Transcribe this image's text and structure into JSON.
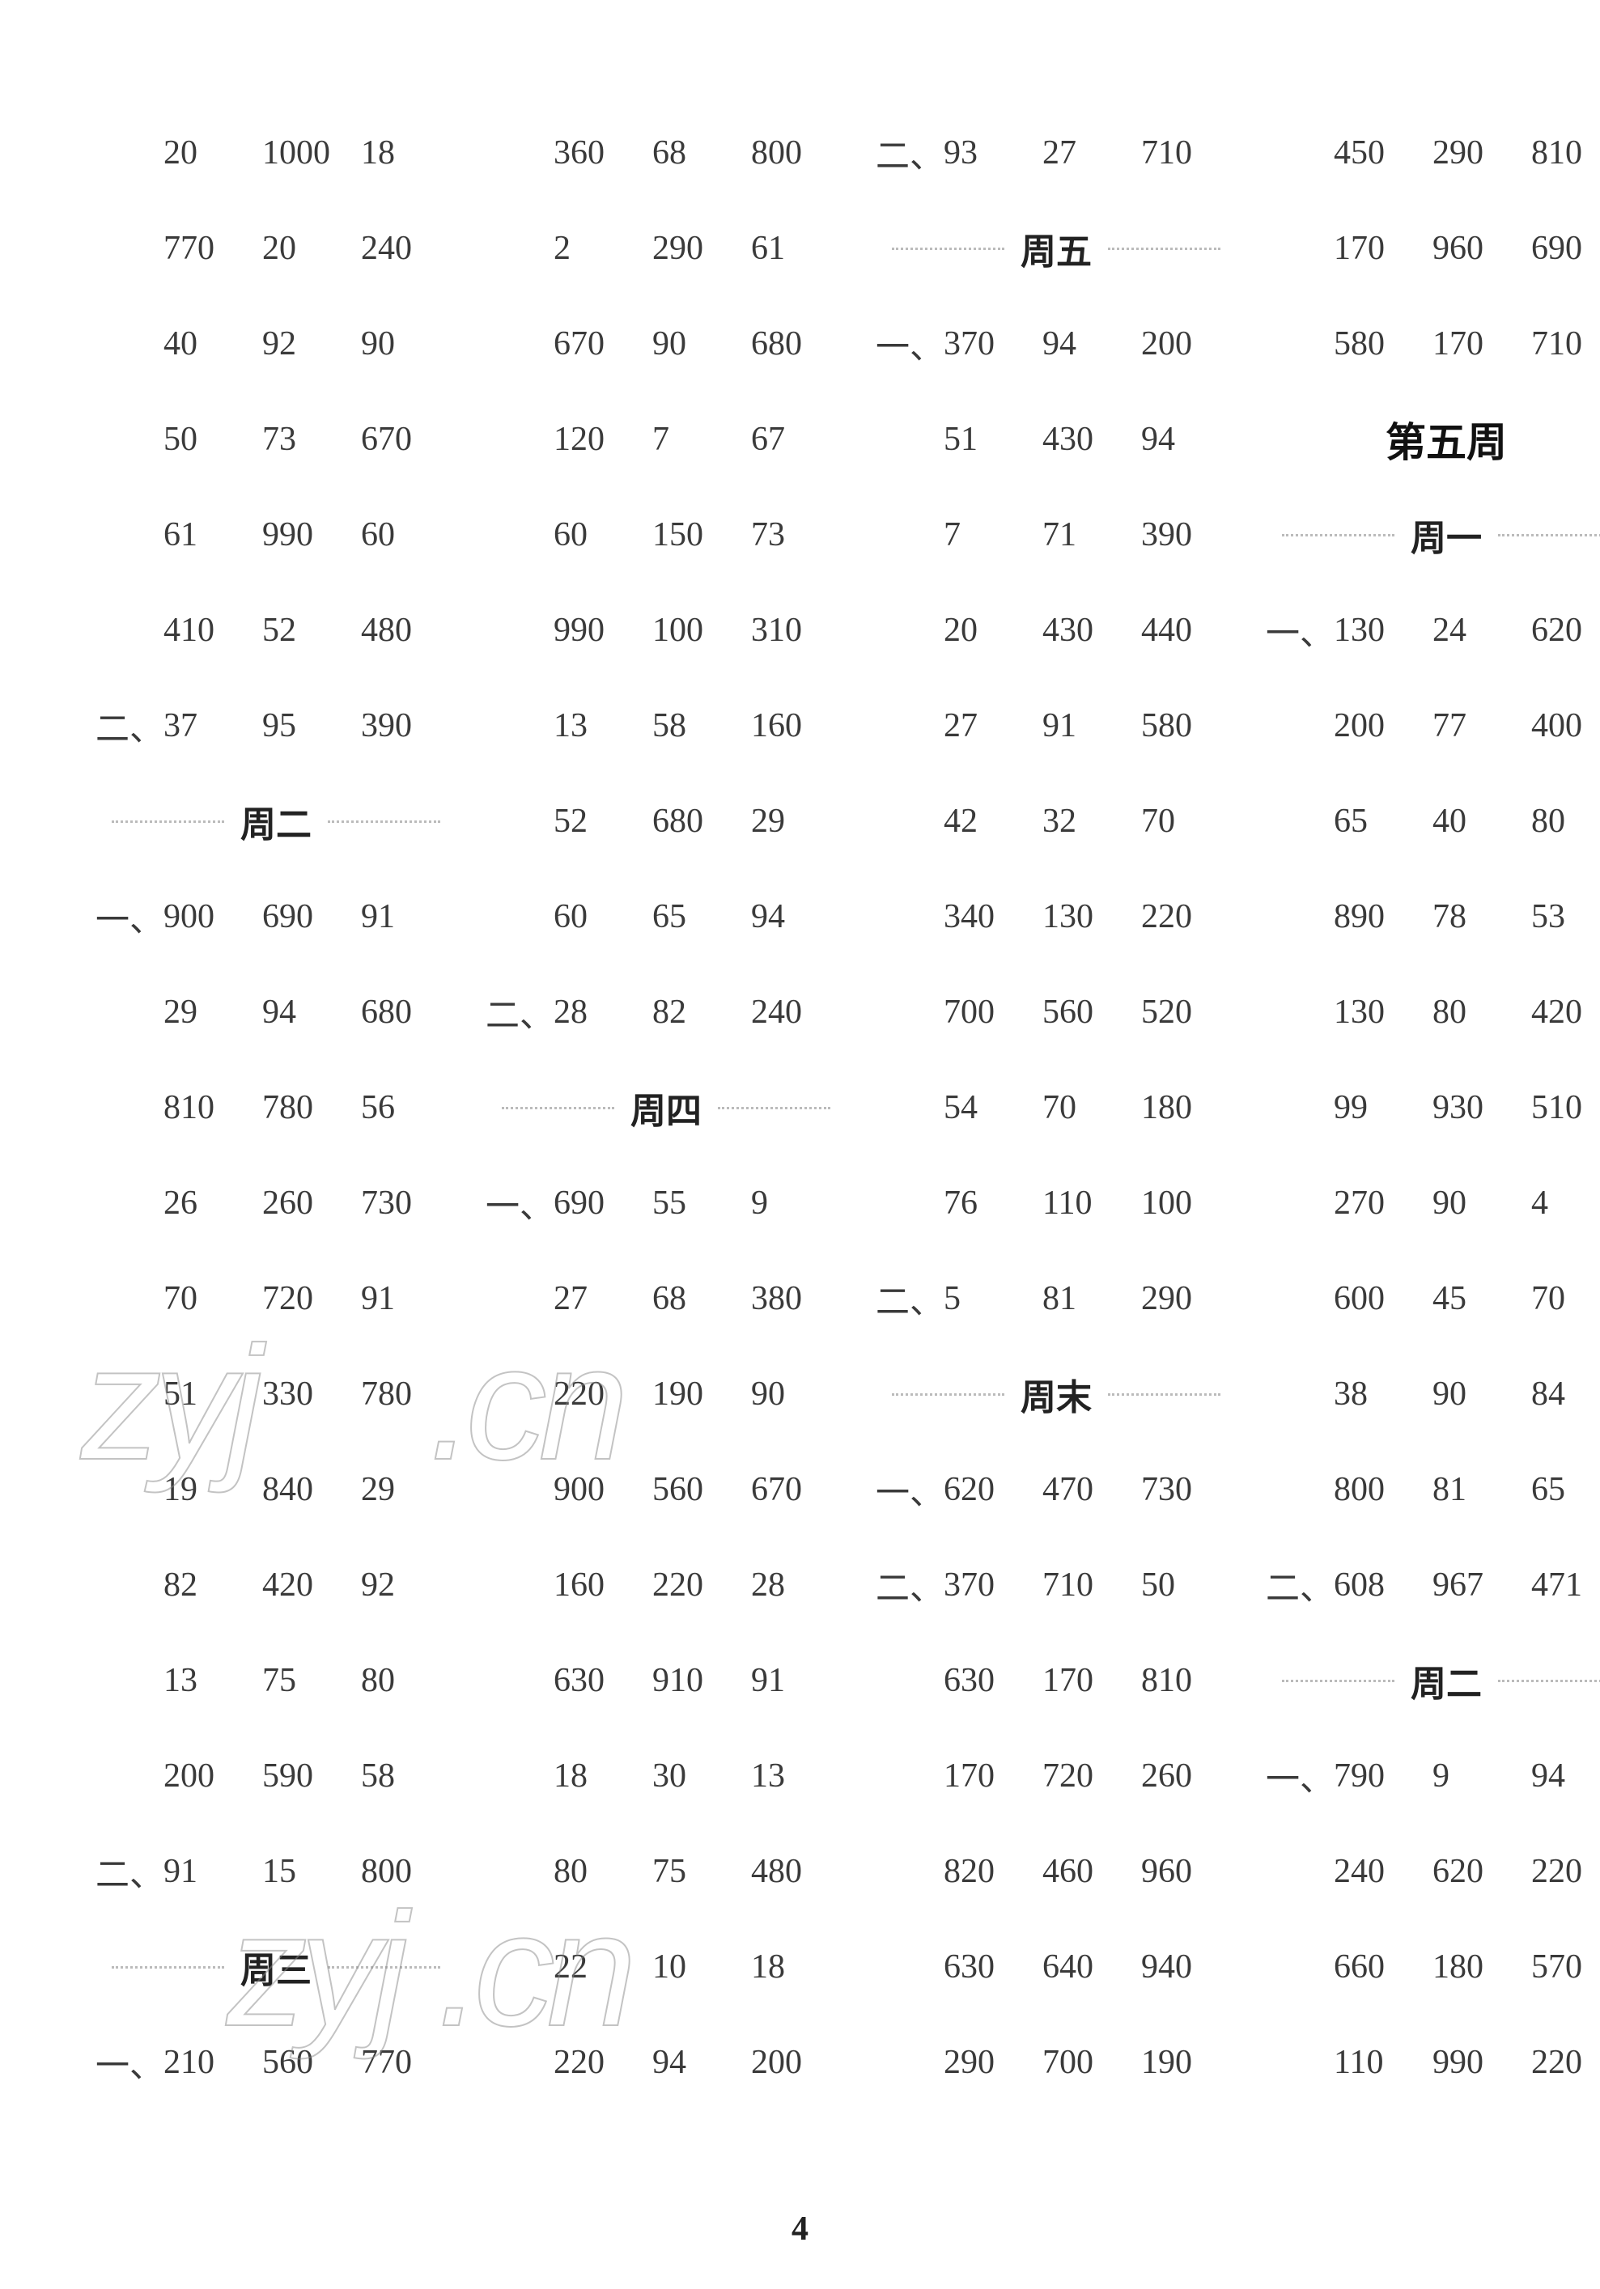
{
  "pageNumber": "4",
  "watermarks": [
    "zyj",
    ".cn",
    "zyj .cn"
  ],
  "columns": [
    {
      "items": [
        {
          "type": "row",
          "prefix": "",
          "cells": [
            "20",
            "1000",
            "18"
          ]
        },
        {
          "type": "row",
          "prefix": "",
          "cells": [
            "770",
            "20",
            "240"
          ]
        },
        {
          "type": "row",
          "prefix": "",
          "cells": [
            "40",
            "92",
            "90"
          ]
        },
        {
          "type": "row",
          "prefix": "",
          "cells": [
            "50",
            "73",
            "670"
          ]
        },
        {
          "type": "row",
          "prefix": "",
          "cells": [
            "61",
            "990",
            "60"
          ]
        },
        {
          "type": "row",
          "prefix": "",
          "cells": [
            "410",
            "52",
            "480"
          ]
        },
        {
          "type": "row",
          "prefix": "二、",
          "cells": [
            "37",
            "95",
            "390"
          ]
        },
        {
          "type": "day",
          "label": "周二"
        },
        {
          "type": "row",
          "prefix": "一、",
          "cells": [
            "900",
            "690",
            "91"
          ]
        },
        {
          "type": "row",
          "prefix": "",
          "cells": [
            "29",
            "94",
            "680"
          ]
        },
        {
          "type": "row",
          "prefix": "",
          "cells": [
            "810",
            "780",
            "56"
          ]
        },
        {
          "type": "row",
          "prefix": "",
          "cells": [
            "26",
            "260",
            "730"
          ]
        },
        {
          "type": "row",
          "prefix": "",
          "cells": [
            "70",
            "720",
            "91"
          ]
        },
        {
          "type": "row",
          "prefix": "",
          "cells": [
            "51",
            "330",
            "780"
          ]
        },
        {
          "type": "row",
          "prefix": "",
          "cells": [
            "19",
            "840",
            "29"
          ]
        },
        {
          "type": "row",
          "prefix": "",
          "cells": [
            "82",
            "420",
            "92"
          ]
        },
        {
          "type": "row",
          "prefix": "",
          "cells": [
            "13",
            "75",
            "80"
          ]
        },
        {
          "type": "row",
          "prefix": "",
          "cells": [
            "200",
            "590",
            "58"
          ]
        },
        {
          "type": "row",
          "prefix": "二、",
          "cells": [
            "91",
            "15",
            "800"
          ]
        },
        {
          "type": "day",
          "label": "周三"
        },
        {
          "type": "row",
          "prefix": "一、",
          "cells": [
            "210",
            "560",
            "770"
          ]
        }
      ]
    },
    {
      "items": [
        {
          "type": "row",
          "prefix": "",
          "cells": [
            "360",
            "68",
            "800"
          ]
        },
        {
          "type": "row",
          "prefix": "",
          "cells": [
            "2",
            "290",
            "61"
          ]
        },
        {
          "type": "row",
          "prefix": "",
          "cells": [
            "670",
            "90",
            "680"
          ]
        },
        {
          "type": "row",
          "prefix": "",
          "cells": [
            "120",
            "7",
            "67"
          ]
        },
        {
          "type": "row",
          "prefix": "",
          "cells": [
            "60",
            "150",
            "73"
          ]
        },
        {
          "type": "row",
          "prefix": "",
          "cells": [
            "990",
            "100",
            "310"
          ]
        },
        {
          "type": "row",
          "prefix": "",
          "cells": [
            "13",
            "58",
            "160"
          ]
        },
        {
          "type": "row",
          "prefix": "",
          "cells": [
            "52",
            "680",
            "29"
          ]
        },
        {
          "type": "row",
          "prefix": "",
          "cells": [
            "60",
            "65",
            "94"
          ]
        },
        {
          "type": "row",
          "prefix": "二、",
          "cells": [
            "28",
            "82",
            "240"
          ]
        },
        {
          "type": "day",
          "label": "周四"
        },
        {
          "type": "row",
          "prefix": "一、",
          "cells": [
            "690",
            "55",
            "9"
          ]
        },
        {
          "type": "row",
          "prefix": "",
          "cells": [
            "27",
            "68",
            "380"
          ]
        },
        {
          "type": "row",
          "prefix": "",
          "cells": [
            "220",
            "190",
            "90"
          ]
        },
        {
          "type": "row",
          "prefix": "",
          "cells": [
            "900",
            "560",
            "670"
          ]
        },
        {
          "type": "row",
          "prefix": "",
          "cells": [
            "160",
            "220",
            "28"
          ]
        },
        {
          "type": "row",
          "prefix": "",
          "cells": [
            "630",
            "910",
            "91"
          ]
        },
        {
          "type": "row",
          "prefix": "",
          "cells": [
            "18",
            "30",
            "13"
          ]
        },
        {
          "type": "row",
          "prefix": "",
          "cells": [
            "80",
            "75",
            "480"
          ]
        },
        {
          "type": "row",
          "prefix": "",
          "cells": [
            "22",
            "10",
            "18"
          ]
        },
        {
          "type": "row",
          "prefix": "",
          "cells": [
            "220",
            "94",
            "200"
          ]
        }
      ]
    },
    {
      "items": [
        {
          "type": "row",
          "prefix": "二、",
          "cells": [
            "93",
            "27",
            "710"
          ]
        },
        {
          "type": "day",
          "label": "周五"
        },
        {
          "type": "row",
          "prefix": "一、",
          "cells": [
            "370",
            "94",
            "200"
          ]
        },
        {
          "type": "row",
          "prefix": "",
          "cells": [
            "51",
            "430",
            "94"
          ]
        },
        {
          "type": "row",
          "prefix": "",
          "cells": [
            "7",
            "71",
            "390"
          ]
        },
        {
          "type": "row",
          "prefix": "",
          "cells": [
            "20",
            "430",
            "440"
          ]
        },
        {
          "type": "row",
          "prefix": "",
          "cells": [
            "27",
            "91",
            "580"
          ]
        },
        {
          "type": "row",
          "prefix": "",
          "cells": [
            "42",
            "32",
            "70"
          ]
        },
        {
          "type": "row",
          "prefix": "",
          "cells": [
            "340",
            "130",
            "220"
          ]
        },
        {
          "type": "row",
          "prefix": "",
          "cells": [
            "700",
            "560",
            "520"
          ]
        },
        {
          "type": "row",
          "prefix": "",
          "cells": [
            "54",
            "70",
            "180"
          ]
        },
        {
          "type": "row",
          "prefix": "",
          "cells": [
            "76",
            "110",
            "100"
          ]
        },
        {
          "type": "row",
          "prefix": "二、",
          "cells": [
            "5",
            "81",
            "290"
          ]
        },
        {
          "type": "day",
          "label": "周末"
        },
        {
          "type": "row",
          "prefix": "一、",
          "cells": [
            "620",
            "470",
            "730"
          ]
        },
        {
          "type": "row",
          "prefix": "二、",
          "cells": [
            "370",
            "710",
            "50"
          ]
        },
        {
          "type": "row",
          "prefix": "",
          "cells": [
            "630",
            "170",
            "810"
          ]
        },
        {
          "type": "row",
          "prefix": "",
          "cells": [
            "170",
            "720",
            "260"
          ]
        },
        {
          "type": "row",
          "prefix": "",
          "cells": [
            "820",
            "460",
            "960"
          ]
        },
        {
          "type": "row",
          "prefix": "",
          "cells": [
            "630",
            "640",
            "940"
          ]
        },
        {
          "type": "row",
          "prefix": "",
          "cells": [
            "290",
            "700",
            "190"
          ]
        }
      ]
    },
    {
      "items": [
        {
          "type": "row",
          "prefix": "",
          "cells": [
            "450",
            "290",
            "810"
          ]
        },
        {
          "type": "row",
          "prefix": "",
          "cells": [
            "170",
            "960",
            "690"
          ]
        },
        {
          "type": "row",
          "prefix": "",
          "cells": [
            "580",
            "170",
            "710"
          ]
        },
        {
          "type": "week",
          "label": "第五周"
        },
        {
          "type": "day",
          "label": "周一"
        },
        {
          "type": "row",
          "prefix": "一、",
          "cells": [
            "130",
            "24",
            "620"
          ]
        },
        {
          "type": "row",
          "prefix": "",
          "cells": [
            "200",
            "77",
            "400"
          ]
        },
        {
          "type": "row",
          "prefix": "",
          "cells": [
            "65",
            "40",
            "80"
          ]
        },
        {
          "type": "row",
          "prefix": "",
          "cells": [
            "890",
            "78",
            "53"
          ]
        },
        {
          "type": "row",
          "prefix": "",
          "cells": [
            "130",
            "80",
            "420"
          ]
        },
        {
          "type": "row",
          "prefix": "",
          "cells": [
            "99",
            "930",
            "510"
          ]
        },
        {
          "type": "row",
          "prefix": "",
          "cells": [
            "270",
            "90",
            "4"
          ]
        },
        {
          "type": "row",
          "prefix": "",
          "cells": [
            "600",
            "45",
            "70"
          ]
        },
        {
          "type": "row",
          "prefix": "",
          "cells": [
            "38",
            "90",
            "84"
          ]
        },
        {
          "type": "row",
          "prefix": "",
          "cells": [
            "800",
            "81",
            "65"
          ]
        },
        {
          "type": "row",
          "prefix": "二、",
          "cells": [
            "608",
            "967",
            "471"
          ]
        },
        {
          "type": "day",
          "label": "周二"
        },
        {
          "type": "row",
          "prefix": "一、",
          "cells": [
            "790",
            "9",
            "94"
          ]
        },
        {
          "type": "row",
          "prefix": "",
          "cells": [
            "240",
            "620",
            "220"
          ]
        },
        {
          "type": "row",
          "prefix": "",
          "cells": [
            "660",
            "180",
            "570"
          ]
        },
        {
          "type": "row",
          "prefix": "",
          "cells": [
            "110",
            "990",
            "220"
          ]
        }
      ]
    }
  ]
}
